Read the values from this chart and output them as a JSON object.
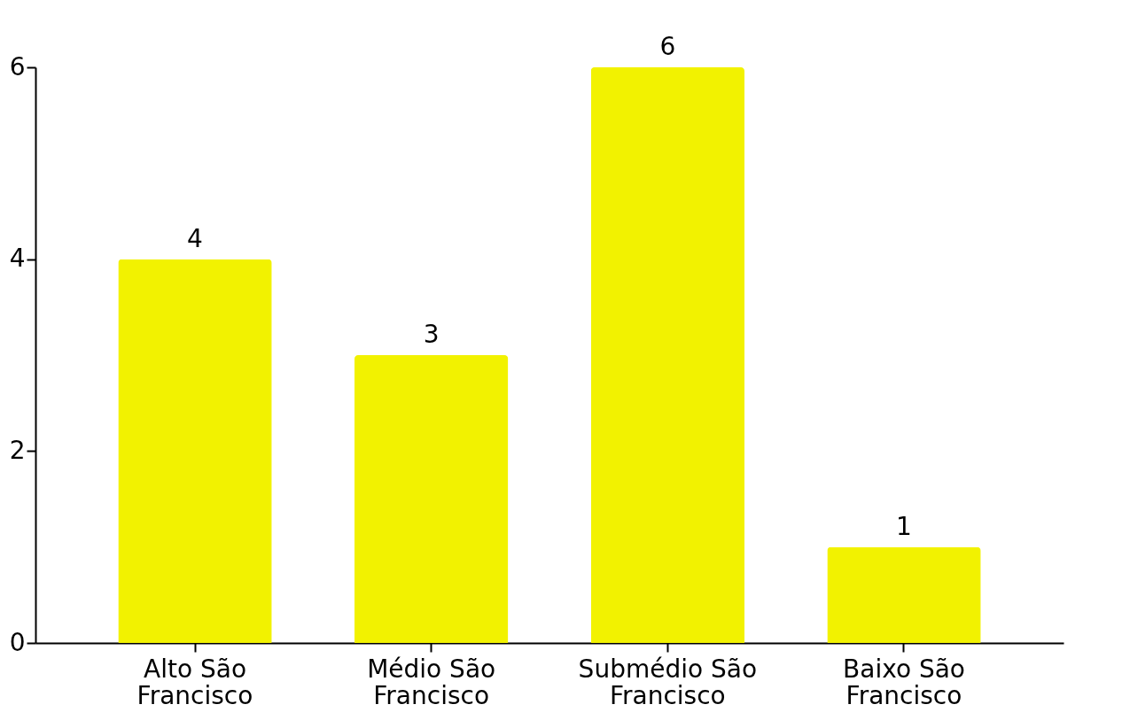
{
  "chart_data": {
    "type": "bar",
    "categories": [
      "Alto São Francisco",
      "Médio São Francisco",
      "Submédio São Francisco",
      "Baixo São Francisco"
    ],
    "values": [
      4,
      3,
      6,
      1
    ],
    "color": "#f2f200",
    "ylim": [
      0,
      6
    ],
    "yticks": [
      0,
      2,
      4,
      6
    ],
    "grid": false,
    "data_labels": true
  }
}
